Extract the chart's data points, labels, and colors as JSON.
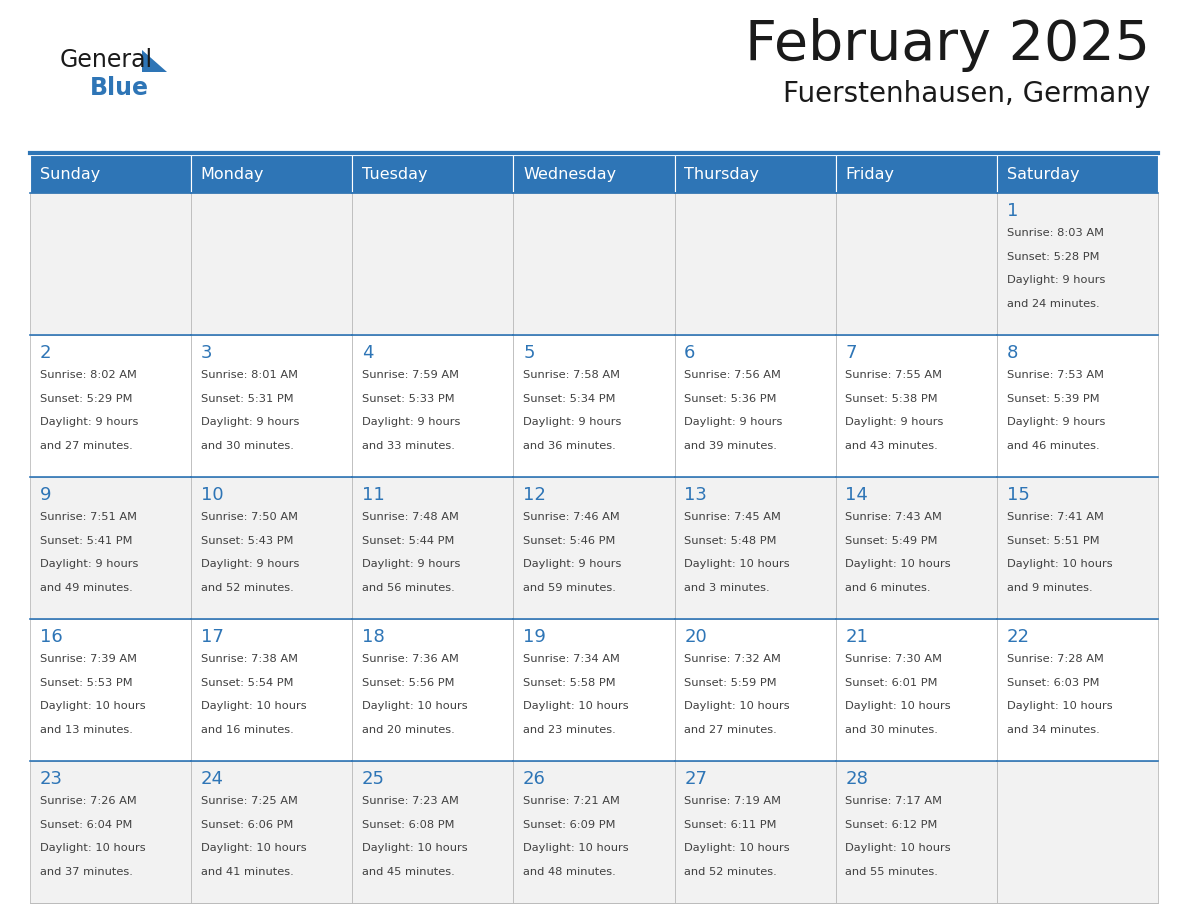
{
  "title": "February 2025",
  "subtitle": "Fuerstenhausen, Germany",
  "days_of_week": [
    "Sunday",
    "Monday",
    "Tuesday",
    "Wednesday",
    "Thursday",
    "Friday",
    "Saturday"
  ],
  "header_bg": "#2E75B6",
  "header_text": "#FFFFFF",
  "cell_bg_odd": "#F2F2F2",
  "cell_bg_even": "#FFFFFF",
  "day_num_color": "#2E75B6",
  "info_text_color": "#404040",
  "border_color": "#BBBBBB",
  "title_color": "#1a1a1a",
  "logo_black": "#1a1a1a",
  "logo_blue": "#2E75B6",
  "calendar": [
    [
      null,
      null,
      null,
      null,
      null,
      null,
      {
        "day": 1,
        "sunrise": "8:03 AM",
        "sunset": "5:28 PM",
        "daylight": "9 hours and 24 minutes."
      }
    ],
    [
      {
        "day": 2,
        "sunrise": "8:02 AM",
        "sunset": "5:29 PM",
        "daylight": "9 hours and 27 minutes."
      },
      {
        "day": 3,
        "sunrise": "8:01 AM",
        "sunset": "5:31 PM",
        "daylight": "9 hours and 30 minutes."
      },
      {
        "day": 4,
        "sunrise": "7:59 AM",
        "sunset": "5:33 PM",
        "daylight": "9 hours and 33 minutes."
      },
      {
        "day": 5,
        "sunrise": "7:58 AM",
        "sunset": "5:34 PM",
        "daylight": "9 hours and 36 minutes."
      },
      {
        "day": 6,
        "sunrise": "7:56 AM",
        "sunset": "5:36 PM",
        "daylight": "9 hours and 39 minutes."
      },
      {
        "day": 7,
        "sunrise": "7:55 AM",
        "sunset": "5:38 PM",
        "daylight": "9 hours and 43 minutes."
      },
      {
        "day": 8,
        "sunrise": "7:53 AM",
        "sunset": "5:39 PM",
        "daylight": "9 hours and 46 minutes."
      }
    ],
    [
      {
        "day": 9,
        "sunrise": "7:51 AM",
        "sunset": "5:41 PM",
        "daylight": "9 hours and 49 minutes."
      },
      {
        "day": 10,
        "sunrise": "7:50 AM",
        "sunset": "5:43 PM",
        "daylight": "9 hours and 52 minutes."
      },
      {
        "day": 11,
        "sunrise": "7:48 AM",
        "sunset": "5:44 PM",
        "daylight": "9 hours and 56 minutes."
      },
      {
        "day": 12,
        "sunrise": "7:46 AM",
        "sunset": "5:46 PM",
        "daylight": "9 hours and 59 minutes."
      },
      {
        "day": 13,
        "sunrise": "7:45 AM",
        "sunset": "5:48 PM",
        "daylight": "10 hours and 3 minutes."
      },
      {
        "day": 14,
        "sunrise": "7:43 AM",
        "sunset": "5:49 PM",
        "daylight": "10 hours and 6 minutes."
      },
      {
        "day": 15,
        "sunrise": "7:41 AM",
        "sunset": "5:51 PM",
        "daylight": "10 hours and 9 minutes."
      }
    ],
    [
      {
        "day": 16,
        "sunrise": "7:39 AM",
        "sunset": "5:53 PM",
        "daylight": "10 hours and 13 minutes."
      },
      {
        "day": 17,
        "sunrise": "7:38 AM",
        "sunset": "5:54 PM",
        "daylight": "10 hours and 16 minutes."
      },
      {
        "day": 18,
        "sunrise": "7:36 AM",
        "sunset": "5:56 PM",
        "daylight": "10 hours and 20 minutes."
      },
      {
        "day": 19,
        "sunrise": "7:34 AM",
        "sunset": "5:58 PM",
        "daylight": "10 hours and 23 minutes."
      },
      {
        "day": 20,
        "sunrise": "7:32 AM",
        "sunset": "5:59 PM",
        "daylight": "10 hours and 27 minutes."
      },
      {
        "day": 21,
        "sunrise": "7:30 AM",
        "sunset": "6:01 PM",
        "daylight": "10 hours and 30 minutes."
      },
      {
        "day": 22,
        "sunrise": "7:28 AM",
        "sunset": "6:03 PM",
        "daylight": "10 hours and 34 minutes."
      }
    ],
    [
      {
        "day": 23,
        "sunrise": "7:26 AM",
        "sunset": "6:04 PM",
        "daylight": "10 hours and 37 minutes."
      },
      {
        "day": 24,
        "sunrise": "7:25 AM",
        "sunset": "6:06 PM",
        "daylight": "10 hours and 41 minutes."
      },
      {
        "day": 25,
        "sunrise": "7:23 AM",
        "sunset": "6:08 PM",
        "daylight": "10 hours and 45 minutes."
      },
      {
        "day": 26,
        "sunrise": "7:21 AM",
        "sunset": "6:09 PM",
        "daylight": "10 hours and 48 minutes."
      },
      {
        "day": 27,
        "sunrise": "7:19 AM",
        "sunset": "6:11 PM",
        "daylight": "10 hours and 52 minutes."
      },
      {
        "day": 28,
        "sunrise": "7:17 AM",
        "sunset": "6:12 PM",
        "daylight": "10 hours and 55 minutes."
      },
      null
    ]
  ]
}
